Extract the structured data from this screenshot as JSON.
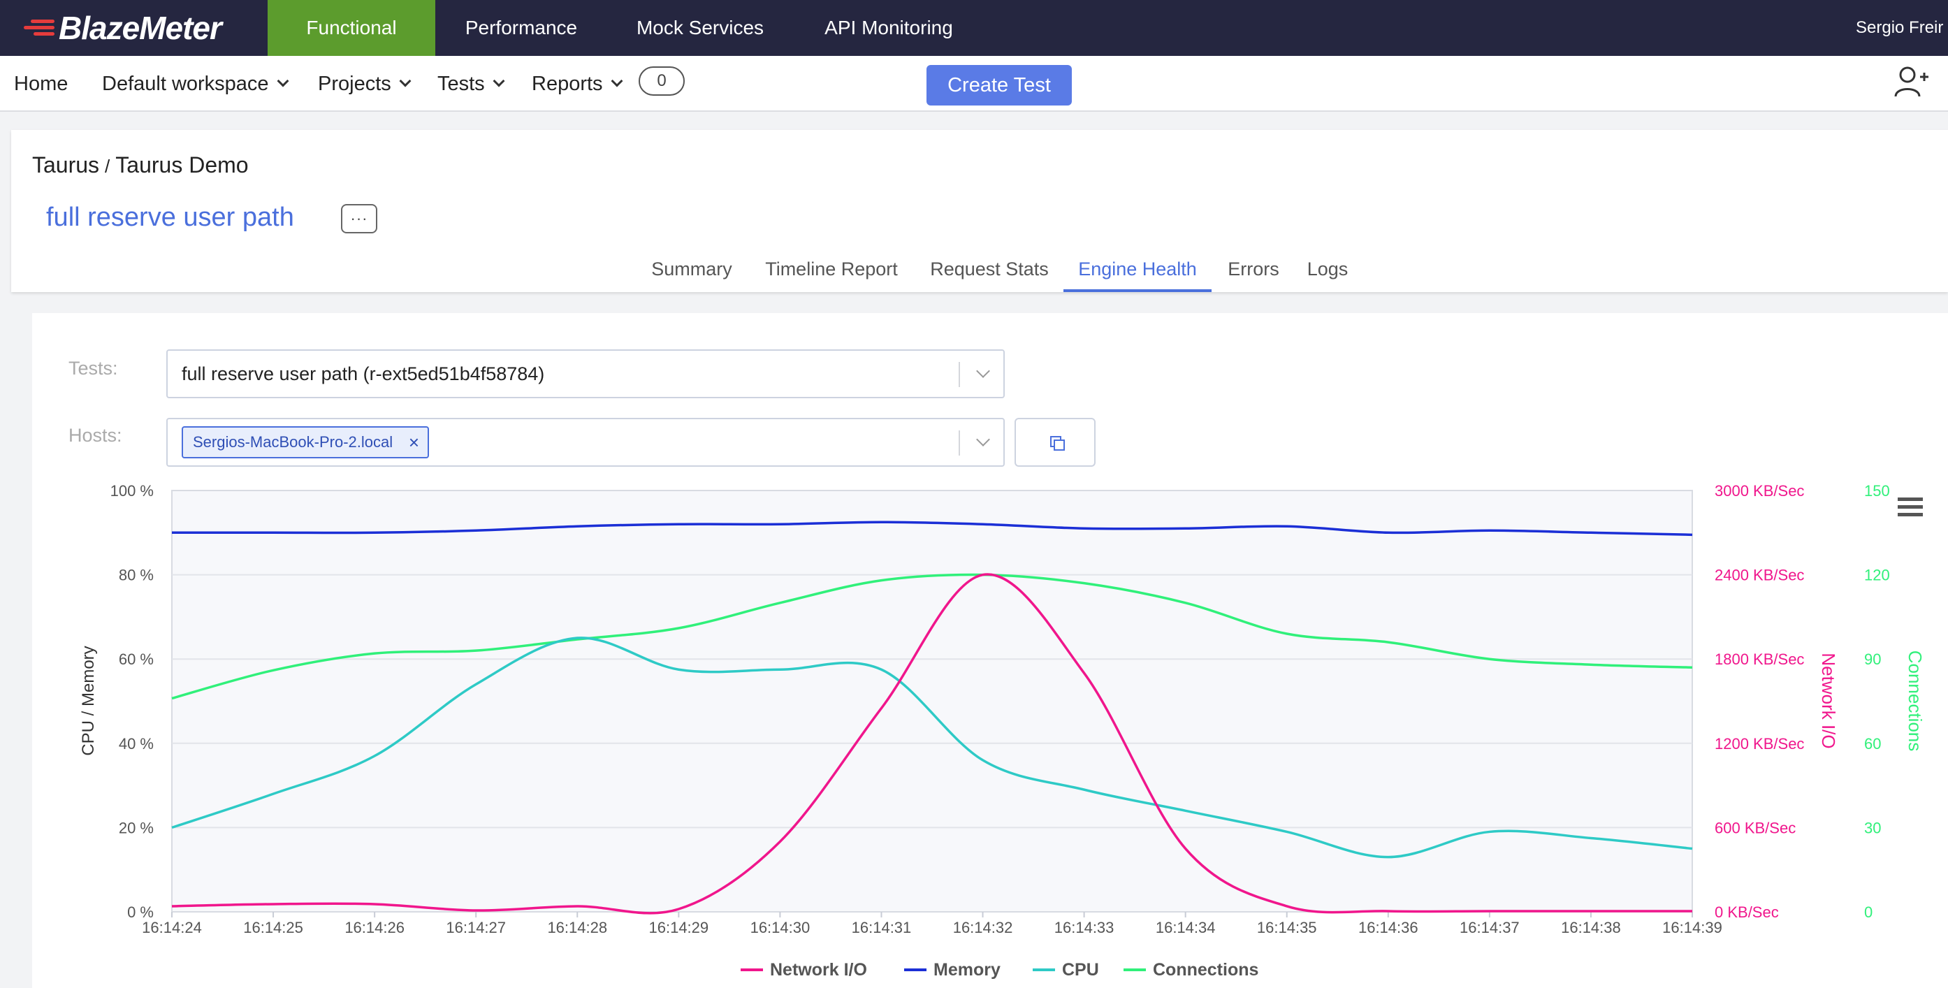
{
  "brand": {
    "name": "BlazeMeter"
  },
  "top_nav": {
    "items": [
      "Functional",
      "Performance",
      "Mock Services",
      "API Monitoring"
    ],
    "active": "Functional",
    "user": "Sergio Freir"
  },
  "sub_nav": {
    "home": "Home",
    "workspace": "Default workspace",
    "projects": "Projects",
    "tests": "Tests",
    "reports": "Reports",
    "badge_count": "0",
    "create_test": "Create Test"
  },
  "breadcrumb": {
    "project": "Taurus",
    "separator": "/",
    "test": "Taurus Demo"
  },
  "test_title": "full reserve user path",
  "more_label": "···",
  "tabs": [
    "Summary",
    "Timeline Report",
    "Request Stats",
    "Engine Health",
    "Errors",
    "Logs"
  ],
  "active_tab": "Engine Health",
  "filters": {
    "tests_label": "Tests:",
    "tests_value": "full reserve user path (r-ext5ed51b4f58784)",
    "hosts_label": "Hosts:",
    "host_tag": "Sergios-MacBook-Pro-2.local",
    "remove_icon": "×"
  },
  "colors": {
    "network": "#f0168c",
    "memory": "#1b2fd6",
    "cpu": "#2ecac6",
    "connections": "#30f07a",
    "accent": "#4a6fdc",
    "functional": "#5c9c2d",
    "topbar": "#252640"
  },
  "chart_data": {
    "type": "line",
    "x": [
      "16:14:24",
      "16:14:25",
      "16:14:26",
      "16:14:27",
      "16:14:28",
      "16:14:29",
      "16:14:30",
      "16:14:31",
      "16:14:32",
      "16:14:33",
      "16:14:34",
      "16:14:35",
      "16:14:36",
      "16:14:37",
      "16:14:38",
      "16:14:39"
    ],
    "y_left": {
      "label": "CPU / Memory",
      "ticks": [
        "0 %",
        "20 %",
        "40 %",
        "60 %",
        "80 %",
        "100 %"
      ],
      "range": [
        0,
        100
      ]
    },
    "y_right_network": {
      "label": "Network I/O",
      "ticks": [
        "0 KB/Sec",
        "600 KB/Sec",
        "1200 KB/Sec",
        "1800 KB/Sec",
        "2400 KB/Sec",
        "3000 KB/Sec"
      ],
      "range": [
        0,
        3000
      ]
    },
    "y_right_connections": {
      "label": "Connections",
      "ticks": [
        "0",
        "30",
        "60",
        "90",
        "120",
        "150"
      ],
      "range": [
        0,
        150
      ]
    },
    "series": [
      {
        "name": "Network I/O",
        "axis": "network",
        "values": [
          40,
          55,
          55,
          10,
          40,
          20,
          500,
          1450,
          2400,
          1700,
          450,
          40,
          5,
          5,
          5,
          5
        ]
      },
      {
        "name": "Memory",
        "axis": "left",
        "values": [
          90,
          90,
          90,
          90.5,
          91.5,
          92,
          92,
          92.5,
          92,
          91,
          91,
          91.5,
          90,
          90.5,
          90,
          89.5
        ]
      },
      {
        "name": "CPU",
        "axis": "left",
        "values": [
          20,
          28,
          37,
          54,
          65,
          57.5,
          57.5,
          57.5,
          36,
          29,
          24,
          19,
          13,
          19,
          17.5,
          15
        ]
      },
      {
        "name": "Connections",
        "axis": "connections",
        "values": [
          76,
          86,
          92,
          93,
          97,
          101,
          110,
          118,
          120,
          117,
          110,
          99,
          96,
          90,
          88,
          87
        ]
      }
    ],
    "legend": [
      "Network I/O",
      "Memory",
      "CPU",
      "Connections"
    ],
    "legend_position": "bottom-center",
    "grid": true
  }
}
